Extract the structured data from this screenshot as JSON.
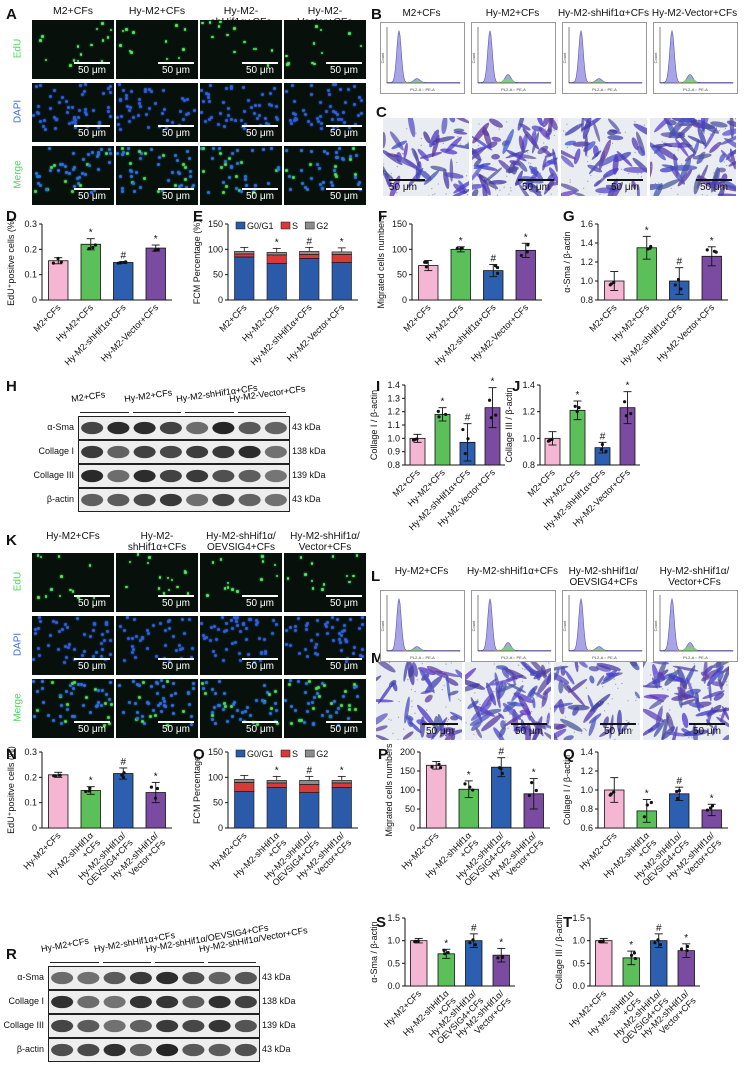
{
  "panel_letters": {
    "A": "A",
    "B": "B",
    "C": "C",
    "D": "D",
    "E": "E",
    "F": "F",
    "G": "G",
    "H": "H",
    "I": "I",
    "J": "J",
    "K": "K",
    "L": "L",
    "M": "M",
    "N": "N",
    "O": "O",
    "P": "P",
    "Q": "Q",
    "R": "R",
    "S": "S",
    "T": "T"
  },
  "top_groups": [
    "M2+CFs",
    "Hy-M2+CFs",
    "Hy-M2-shHif1α+CFs",
    "Hy-M2-Vector+CFs"
  ],
  "bottom_groups_title": [
    "Hy-M2+CFs",
    "Hy-M2-shHif1α+CFs",
    "Hy-M2-shHif1α/\nOEVSIG4+CFs",
    "Hy-M2-shHif1α/\nVector+CFs"
  ],
  "stain_rows": [
    "EdU",
    "DAPI",
    "Merge"
  ],
  "scale_bar": "50 μm",
  "fcm_axis_x": "PL2-A :: PE-A",
  "fcm_axis_y": "Count",
  "colors": {
    "edu": "#4fd65a",
    "dapi": "#3a6be0",
    "pink": "#f4b6d2",
    "green": "#5bc05a",
    "blue": "#2d5fb0",
    "purple": "#7a4ba0",
    "g0g1": "#2a5aa8",
    "s": "#d83a3a",
    "g2": "#8c8c8c"
  },
  "western_top": {
    "groups": [
      "M2+CFs",
      "Hy-M2+CFs",
      "Hy-M2-shHif1α+CFs",
      "Hy-M2-Vector+CFs"
    ],
    "rows": [
      {
        "name": "α-Sma",
        "kda": "43 kDa"
      },
      {
        "name": "Collage I",
        "kda": "138 kDa"
      },
      {
        "name": "Collage III",
        "kda": "139 kDa"
      },
      {
        "name": "β-actin",
        "kda": "43 kDa"
      }
    ]
  },
  "western_bottom": {
    "groups": [
      "Hy-M2+CFs",
      "Hy-M2-shHif1α+CFs",
      "Hy-M2-shHif1α/OEVSIG4+CFs",
      "Hy-M2-shHif1α/Vector+CFs"
    ],
    "rows": [
      {
        "name": "α-Sma",
        "kda": "43 kDa"
      },
      {
        "name": "Collage I",
        "kda": "138 kDa"
      },
      {
        "name": "Collage III",
        "kda": "139 kDa"
      },
      {
        "name": "β-actin",
        "kda": "43 kDa"
      }
    ]
  },
  "chart_data": [
    {
      "id": "D",
      "type": "bar",
      "ylabel": "EdU⁺positve cells (%)",
      "ylim": [
        0,
        0.3
      ],
      "yticks": [
        "0",
        "0.1",
        "0.2",
        "0.3"
      ],
      "categories": [
        "M2+CFs",
        "Hy-M2+CFs",
        "Hy-M2-shHif1α+CFs",
        "Hy-M2-Vector+CFs"
      ],
      "values": [
        0.155,
        0.22,
        0.148,
        0.205
      ],
      "errors": [
        0.012,
        0.022,
        0.004,
        0.012
      ],
      "marks": [
        "",
        "*",
        "#",
        "*"
      ]
    },
    {
      "id": "E",
      "type": "bar",
      "stacked": true,
      "ylabel": "FCM Percentage (%)",
      "ylim": [
        0,
        150
      ],
      "yticks": [
        "0",
        "50",
        "100",
        "150"
      ],
      "categories": [
        "M2+CFs",
        "Hy-M2+CFs",
        "Hy-M2-shHif1α+CFs",
        "Hy-M2-Vector+CFs"
      ],
      "series": [
        {
          "name": "G0/G1",
          "values": [
            85,
            72,
            82,
            74
          ]
        },
        {
          "name": "S",
          "values": [
            6,
            17,
            8,
            16
          ]
        },
        {
          "name": "G2",
          "values": [
            5,
            5,
            6,
            5
          ]
        }
      ],
      "marks": [
        "",
        "*",
        "#",
        "*"
      ]
    },
    {
      "id": "F",
      "type": "bar",
      "ylabel": "Migrated cells numbers",
      "ylim": [
        0,
        150
      ],
      "yticks": [
        "0",
        "50",
        "100",
        "150"
      ],
      "categories": [
        "M2+CFs",
        "Hy-M2+CFs",
        "Hy-M2-shHif1α+CFs",
        "Hy-M2-Vector+CFs"
      ],
      "values": [
        68,
        100,
        58,
        98
      ],
      "errors": [
        10,
        5,
        12,
        14
      ],
      "marks": [
        "",
        "*",
        "#",
        "*"
      ]
    },
    {
      "id": "G",
      "type": "bar",
      "ylabel": "α-Sma / β-actin",
      "ylim": [
        0.8,
        1.6
      ],
      "yticks": [
        "0.8",
        "1.0",
        "1.2",
        "1.4",
        "1.6"
      ],
      "categories": [
        "M2+CFs",
        "Hy-M2+CFs",
        "Hy-M2-shHif1α+CFs",
        "Hy-M2-Vector+CFs"
      ],
      "values": [
        1.0,
        1.35,
        1.0,
        1.26
      ],
      "errors": [
        0.1,
        0.12,
        0.14,
        0.1
      ],
      "marks": [
        "",
        "*",
        "#",
        "*"
      ]
    },
    {
      "id": "I",
      "type": "bar",
      "ylabel": "Collage I / β-actin",
      "ylim": [
        0.8,
        1.4
      ],
      "yticks": [
        "0.8",
        "0.9",
        "1.0",
        "1.1",
        "1.2",
        "1.3",
        "1.4"
      ],
      "categories": [
        "M2+CFs",
        "Hy-M2+CFs",
        "Hy-M2-shHif1α+CFs",
        "Hy-M2-Vector+CFs"
      ],
      "values": [
        1.0,
        1.18,
        0.97,
        1.23
      ],
      "errors": [
        0.03,
        0.05,
        0.14,
        0.15
      ],
      "marks": [
        "",
        "*",
        "#",
        "*"
      ]
    },
    {
      "id": "J",
      "type": "bar",
      "ylabel": "Collage III / β-actin",
      "ylim": [
        0.8,
        1.4
      ],
      "yticks": [
        "0.8",
        "1.0",
        "1.2",
        "1.4"
      ],
      "categories": [
        "M2+CFs",
        "Hy-M2+CFs",
        "Hy-M2-shHif1α+CFs",
        "Hy-M2-Vector+CFs"
      ],
      "values": [
        1.0,
        1.21,
        0.93,
        1.23
      ],
      "errors": [
        0.05,
        0.07,
        0.04,
        0.12
      ],
      "marks": [
        "",
        "*",
        "#",
        "*"
      ]
    },
    {
      "id": "N",
      "type": "bar",
      "ylabel": "EdU⁺positve cells (%)",
      "ylim": [
        0,
        0.3
      ],
      "yticks": [
        "0",
        "0.1",
        "0.2",
        "0.3"
      ],
      "categories": [
        "Hy-M2+CFs",
        "Hy-M2-shHif1α\n+CFs",
        "Hy-M2-shHif1α/\nOEVSIG4+CFs",
        "Hy-M2-shHif1α/\nVector+CFs"
      ],
      "values": [
        0.21,
        0.148,
        0.215,
        0.14
      ],
      "errors": [
        0.01,
        0.015,
        0.022,
        0.04
      ],
      "marks": [
        "",
        "*",
        "#",
        "*"
      ]
    },
    {
      "id": "O",
      "type": "bar",
      "stacked": true,
      "ylabel": "FCM Percentage",
      "ylim": [
        0,
        150
      ],
      "yticks": [
        "0",
        "50",
        "100",
        "150"
      ],
      "categories": [
        "Hy-M2+CFs",
        "Hy-M2-shHif1α\n+CFs",
        "Hy-M2-shHif1α/\nOEVSIG4+CFs",
        "Hy-M2-shHif1α/\nVector+CFs"
      ],
      "series": [
        {
          "name": "G0/G1",
          "values": [
            72,
            80,
            70,
            80
          ]
        },
        {
          "name": "S",
          "values": [
            18,
            9,
            16,
            9
          ]
        },
        {
          "name": "G2",
          "values": [
            6,
            5,
            8,
            5
          ]
        }
      ],
      "marks": [
        "",
        "*",
        "#",
        "*"
      ]
    },
    {
      "id": "P",
      "type": "bar",
      "ylabel": "Migrated cells numbers",
      "ylim": [
        0,
        200
      ],
      "yticks": [
        "0",
        "50",
        "100",
        "150",
        "200"
      ],
      "categories": [
        "Hy-M2+CFs",
        "Hy-M2-shHif1α\n+CFs",
        "Hy-M2-shHif1α/\nOEVSIG4+CFs",
        "Hy-M2-shHif1α/\nVector+CFs"
      ],
      "values": [
        165,
        102,
        160,
        90
      ],
      "errors": [
        10,
        22,
        25,
        40
      ],
      "marks": [
        "",
        "*",
        "#",
        "*"
      ]
    },
    {
      "id": "Q",
      "type": "bar",
      "ylabel": "Collage I / β-actin",
      "ylim": [
        0.6,
        1.4
      ],
      "yticks": [
        "0.6",
        "0.8",
        "1.0",
        "1.2",
        "1.4"
      ],
      "categories": [
        "Hy-M2+CFs",
        "Hy-M2-shHif1α\n+CFs",
        "Hy-M2-shHif1α/\nOEVSIG4+CFs",
        "Hy-M2-shHif1α/\nVector+CFs"
      ],
      "values": [
        1.0,
        0.78,
        0.96,
        0.79
      ],
      "errors": [
        0.13,
        0.12,
        0.07,
        0.06
      ],
      "marks": [
        "",
        "*",
        "#",
        "*"
      ]
    },
    {
      "id": "S",
      "type": "bar",
      "ylabel": "α-Sma / β-actin",
      "ylim": [
        0,
        1.5
      ],
      "yticks": [
        "0.0",
        "0.5",
        "1.0",
        "1.5"
      ],
      "categories": [
        "Hy-M2+CFs",
        "Hy-M2-shHif1α\n+CFs",
        "Hy-M2-shHif1α/\nOEVSIG4+CFs",
        "Hy-M2-shHif1α/\nVector+CFs"
      ],
      "values": [
        1.0,
        0.71,
        1.0,
        0.68
      ],
      "errors": [
        0.05,
        0.1,
        0.15,
        0.15
      ],
      "marks": [
        "",
        "*",
        "#",
        "*"
      ]
    },
    {
      "id": "T",
      "type": "bar",
      "ylabel": "Collage III / β-actin",
      "ylim": [
        0,
        1.5
      ],
      "yticks": [
        "0.0",
        "0.5",
        "1.0",
        "1.5"
      ],
      "categories": [
        "Hy-M2+CFs",
        "Hy-M2-shHif1α\n+CFs",
        "Hy-M2-shHif1α/\nOEVSIG4+CFs",
        "Hy-M2-shHif1α/\nVector+CFs"
      ],
      "values": [
        1.0,
        0.62,
        1.0,
        0.78
      ],
      "errors": [
        0.05,
        0.15,
        0.15,
        0.15
      ],
      "marks": [
        "",
        "*",
        "#",
        "*"
      ]
    }
  ]
}
